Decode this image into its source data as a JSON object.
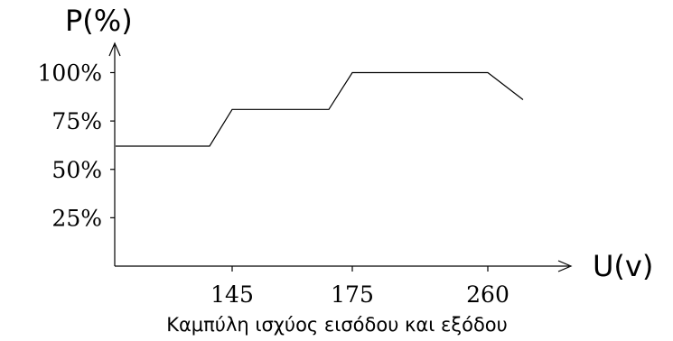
{
  "chart_data": {
    "type": "line",
    "title": "",
    "caption": "Καμπύλη ισχύος εισόδου και εξόδου",
    "xlabel": "U(v)",
    "ylabel": "P(%)",
    "x_ticks": [
      "145",
      "175",
      "260"
    ],
    "y_ticks": [
      "25%",
      "50%",
      "75%",
      "100%"
    ],
    "y_tick_values": [
      25,
      50,
      75,
      100
    ],
    "ylim": [
      0,
      120
    ],
    "grid": false,
    "legend": "none",
    "series": [
      {
        "points": [
          {
            "x": "start",
            "y": 62
          },
          {
            "x": "before 145",
            "y": 62
          },
          {
            "x": "145",
            "y": 81
          },
          {
            "x": "before 175",
            "y": 81
          },
          {
            "x": "175",
            "y": 100
          },
          {
            "x": "260",
            "y": 100
          },
          {
            "x": "after 260",
            "y": 86
          }
        ]
      }
    ]
  }
}
